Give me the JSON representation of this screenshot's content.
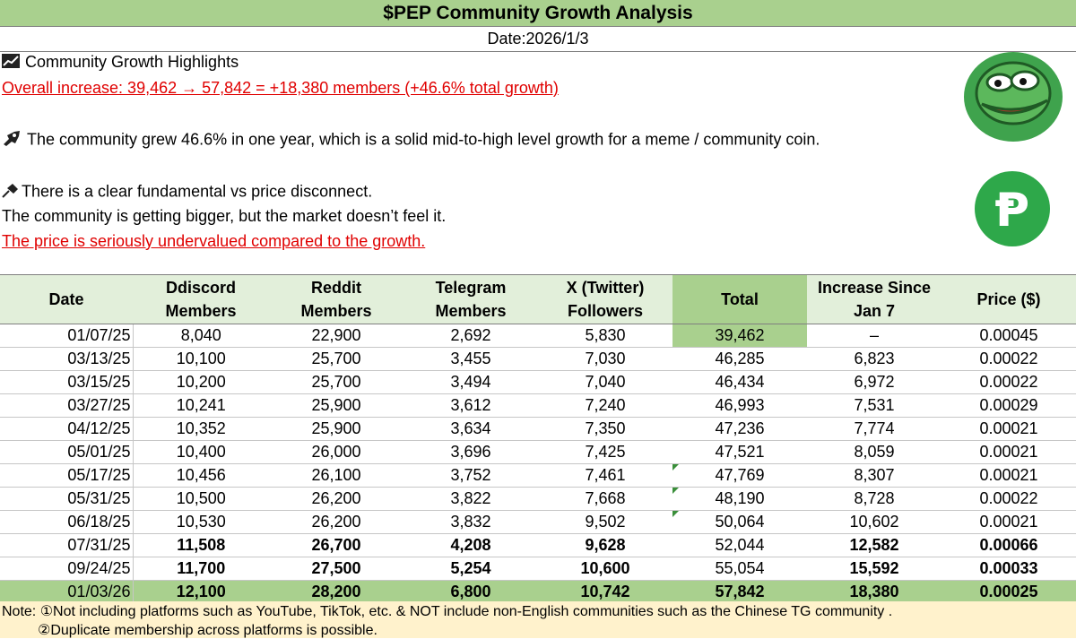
{
  "header": {
    "title": "$PEP Community Growth Analysis",
    "date": "Date:2026/1/3"
  },
  "highlights": {
    "heading": "Community Growth Highlights",
    "overall": "Overall increase: 39,462 → 57,842 = +18,380 members (+46.6% total growth)",
    "growth_note": "The community grew 46.6% in one year, which is a solid mid-to-high level growth for a meme / community coin.",
    "disconnect": "There is a clear fundamental vs price disconnect.",
    "bigger": "The community is getting bigger, but the market doesn’t feel it.",
    "undervalued": "The price is seriously undervalued compared to the growth."
  },
  "logos": {
    "pepe_icon": "pepe-frog-logo",
    "p_icon": "pep-coin-logo",
    "p_letter": "Ᵽ"
  },
  "table": {
    "headers": {
      "date": "Date",
      "discord_1": "Ddiscord",
      "discord_2": "Members",
      "reddit_1": "Reddit",
      "reddit_2": "Members",
      "telegram_1": "Telegram",
      "telegram_2": "Members",
      "x_1": "X (Twitter)",
      "x_2": "Followers",
      "total": "Total",
      "increase_1": "Increase Since",
      "increase_2": "Jan 7",
      "price": "Price ($)"
    },
    "rows": [
      {
        "date": "01/07/25",
        "discord": "8,040",
        "reddit": "22,900",
        "telegram": "2,692",
        "x": "5,830",
        "total": "39,462",
        "increase": "–",
        "price": "0.00045"
      },
      {
        "date": "03/13/25",
        "discord": "10,100",
        "reddit": "25,700",
        "telegram": "3,455",
        "x": "7,030",
        "total": "46,285",
        "increase": "6,823",
        "price": "0.00022"
      },
      {
        "date": "03/15/25",
        "discord": "10,200",
        "reddit": "25,700",
        "telegram": "3,494",
        "x": "7,040",
        "total": "46,434",
        "increase": "6,972",
        "price": "0.00022"
      },
      {
        "date": "03/27/25",
        "discord": "10,241",
        "reddit": "25,900",
        "telegram": "3,612",
        "x": "7,240",
        "total": "46,993",
        "increase": "7,531",
        "price": "0.00029"
      },
      {
        "date": "04/12/25",
        "discord": "10,352",
        "reddit": "25,900",
        "telegram": "3,634",
        "x": "7,350",
        "total": "47,236",
        "increase": "7,774",
        "price": "0.00021"
      },
      {
        "date": "05/01/25",
        "discord": "10,400",
        "reddit": "26,000",
        "telegram": "3,696",
        "x": "7,425",
        "total": "47,521",
        "increase": "8,059",
        "price": "0.00021"
      },
      {
        "date": "05/17/25",
        "discord": "10,456",
        "reddit": "26,100",
        "telegram": "3,752",
        "x": "7,461",
        "total": "47,769",
        "increase": "8,307",
        "price": "0.00021"
      },
      {
        "date": "05/31/25",
        "discord": "10,500",
        "reddit": "26,200",
        "telegram": "3,822",
        "x": "7,668",
        "total": "48,190",
        "increase": "8,728",
        "price": "0.00022"
      },
      {
        "date": "06/18/25",
        "discord": "10,530",
        "reddit": "26,200",
        "telegram": "3,832",
        "x": "9,502",
        "total": "50,064",
        "increase": "10,602",
        "price": "0.00021"
      },
      {
        "date": "07/31/25",
        "discord": "11,508",
        "reddit": "26,700",
        "telegram": "4,208",
        "x": "9,628",
        "total": "52,044",
        "increase": "12,582",
        "price": "0.00066"
      },
      {
        "date": "09/24/25",
        "discord": "11,700",
        "reddit": "27,500",
        "telegram": "5,254",
        "x": "10,600",
        "total": "55,054",
        "increase": "15,592",
        "price": "0.00033"
      },
      {
        "date": "01/03/26",
        "discord": "12,100",
        "reddit": "28,200",
        "telegram": "6,800",
        "x": "10,742",
        "total": "57,842",
        "increase": "18,380",
        "price": "0.00025"
      }
    ]
  },
  "notes": {
    "line1": "Note: ①Not including platforms such as YouTube, TikTok, etc. & NOT include non-English communities such as the Chinese TG community .",
    "line2": "②Duplicate membership across platforms is possible."
  }
}
